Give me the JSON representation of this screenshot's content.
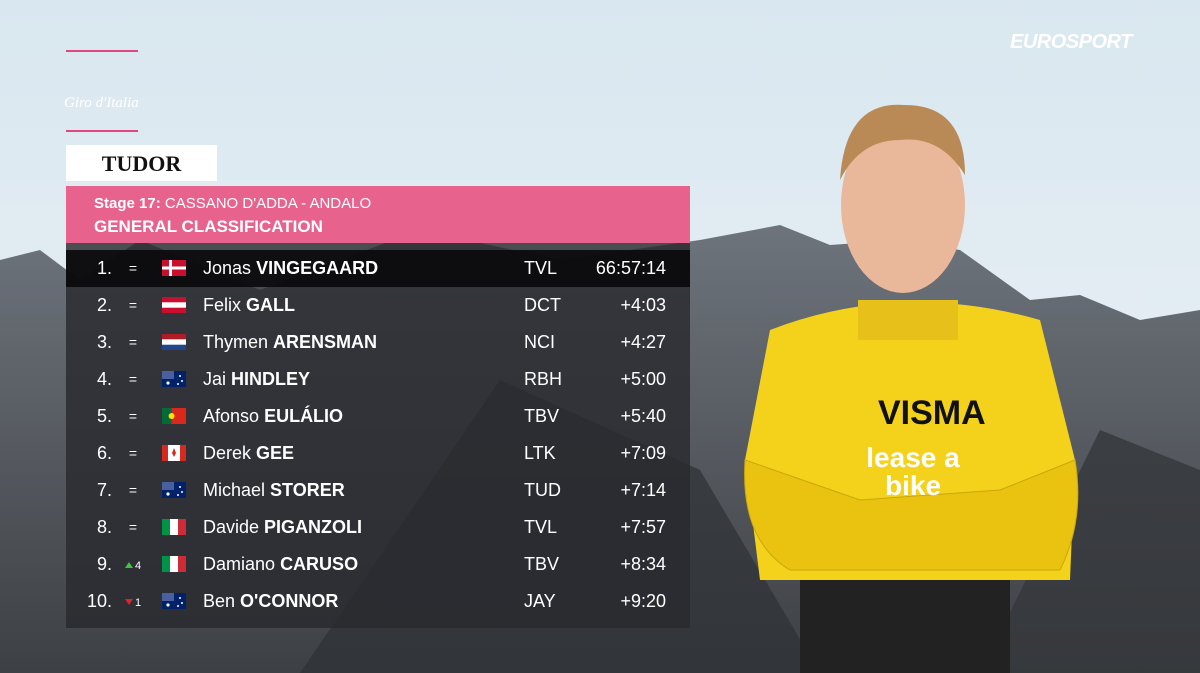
{
  "broadcast": {
    "network": "EUROSPORT",
    "race_logo": "Giro d'Italia",
    "sponsor": "TUDOR"
  },
  "header": {
    "stage_label": "Stage 17:",
    "stage_route": "CASSANO D'ADDA - ANDALO",
    "title": "GENERAL CLASSIFICATION"
  },
  "table": {
    "rows": [
      {
        "rank": "1.",
        "change": "=",
        "first": "Jonas",
        "last": "VINGEGAARD",
        "team": "TVL",
        "time": "66:57:14"
      },
      {
        "rank": "2.",
        "change": "=",
        "first": "Felix",
        "last": "GALL",
        "team": "DCT",
        "time": "+4:03"
      },
      {
        "rank": "3.",
        "change": "=",
        "first": "Thymen",
        "last": "ARENSMAN",
        "team": "NCI",
        "time": "+4:27"
      },
      {
        "rank": "4.",
        "change": "=",
        "first": "Jai",
        "last": "HINDLEY",
        "team": "RBH",
        "time": "+5:00"
      },
      {
        "rank": "5.",
        "change": "=",
        "first": "Afonso",
        "last": "EULÁLIO",
        "team": "TBV",
        "time": "+5:40"
      },
      {
        "rank": "6.",
        "change": "=",
        "first": "Derek",
        "last": "GEE",
        "team": "LTK",
        "time": "+7:09"
      },
      {
        "rank": "7.",
        "change": "=",
        "first": "Michael",
        "last": "STORER",
        "team": "TUD",
        "time": "+7:14"
      },
      {
        "rank": "8.",
        "change": "=",
        "first": "Davide",
        "last": "PIGANZOLI",
        "team": "TVL",
        "time": "+7:57"
      },
      {
        "rank": "9.",
        "change": {
          "arrow": "up",
          "places": 4
        },
        "first": "Damiano",
        "last": "CARUSO",
        "team": "TBV",
        "time": "+8:34"
      },
      {
        "rank": "10.",
        "change": {
          "arrow": "down",
          "places": 1
        },
        "first": "Ben",
        "last": "O'CONNOR",
        "team": "JAY",
        "time": "+9:20"
      }
    ]
  },
  "photo": {
    "jersey_sponsor": "VISMA",
    "jersey_text": "lease a bike"
  }
}
